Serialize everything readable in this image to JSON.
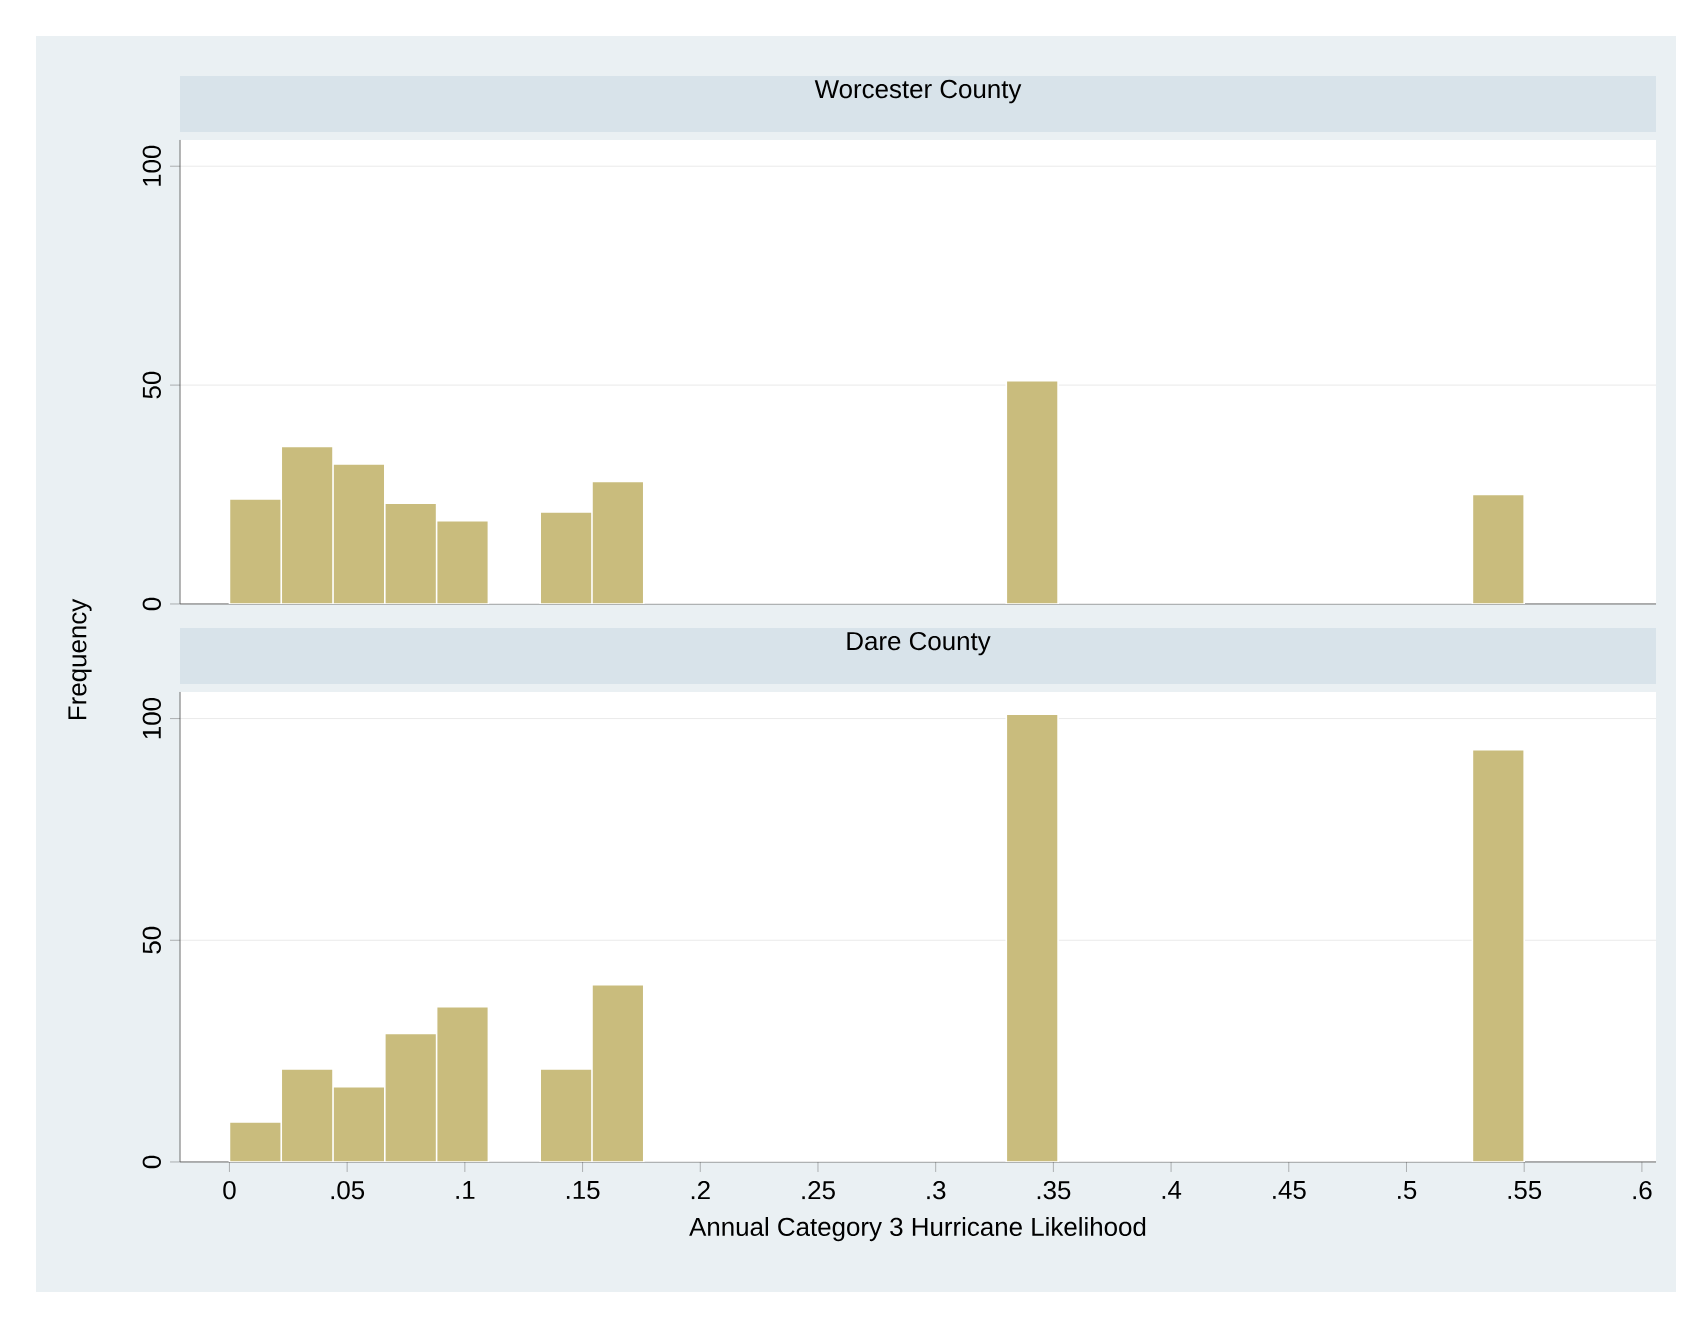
{
  "chart_data": [
    {
      "type": "histogram",
      "title": "Worcester County",
      "ylabel": "Frequency",
      "color": "#c9bc7d",
      "bins": [
        0,
        0.022,
        0.044,
        0.066,
        0.088,
        0.11,
        0.132,
        0.154,
        0.176,
        0.198,
        0.22,
        0.242,
        0.264,
        0.286,
        0.308,
        0.33,
        0.352,
        0.374,
        0.396,
        0.418,
        0.44,
        0.462,
        0.484,
        0.506,
        0.528,
        0.55
      ],
      "values": [
        24,
        36,
        32,
        23,
        19,
        0,
        21,
        28,
        0,
        0,
        0,
        0,
        0,
        0,
        0,
        51,
        0,
        0,
        0,
        0,
        0,
        0,
        0,
        0,
        25
      ],
      "xlim": [
        -0.021,
        0.606
      ],
      "ylim": [
        0,
        106
      ],
      "yticks": [
        0,
        50,
        100
      ],
      "grid": "y",
      "tick_labels": "y"
    },
    {
      "type": "histogram",
      "title": "Dare County",
      "xlabel": "Annual Category 3 Hurricane Likelihood",
      "color": "#c9bc7d",
      "bins": [
        0,
        0.022,
        0.044,
        0.066,
        0.088,
        0.11,
        0.132,
        0.154,
        0.176,
        0.198,
        0.22,
        0.242,
        0.264,
        0.286,
        0.308,
        0.33,
        0.352,
        0.374,
        0.396,
        0.418,
        0.44,
        0.462,
        0.484,
        0.506,
        0.528,
        0.55
      ],
      "values": [
        9,
        21,
        17,
        29,
        35,
        0,
        21,
        40,
        0,
        0,
        0,
        0,
        0,
        0,
        0,
        101,
        0,
        0,
        0,
        0,
        0,
        0,
        0,
        0,
        93
      ],
      "xlim": [
        -0.021,
        0.606
      ],
      "ylim": [
        0,
        106
      ],
      "yticks": [
        0,
        50,
        100
      ],
      "xticks": [
        0,
        {
          "value": 0.05,
          "label": ".05"
        },
        {
          "value": 0.1,
          "label": ".1"
        },
        {
          "value": 0.15,
          "label": ".15"
        },
        {
          "value": 0.2,
          "label": ".2"
        },
        {
          "value": 0.25,
          "label": ".25"
        },
        {
          "value": 0.3,
          "label": ".3"
        },
        {
          "value": 0.35,
          "label": ".35"
        },
        {
          "value": 0.4,
          "label": ".4"
        },
        {
          "value": 0.45,
          "label": ".45"
        },
        {
          "value": 0.5,
          "label": ".5"
        },
        {
          "value": 0.55,
          "label": ".55"
        },
        {
          "value": 0.6,
          "label": ".6"
        }
      ],
      "grid": "y"
    }
  ]
}
